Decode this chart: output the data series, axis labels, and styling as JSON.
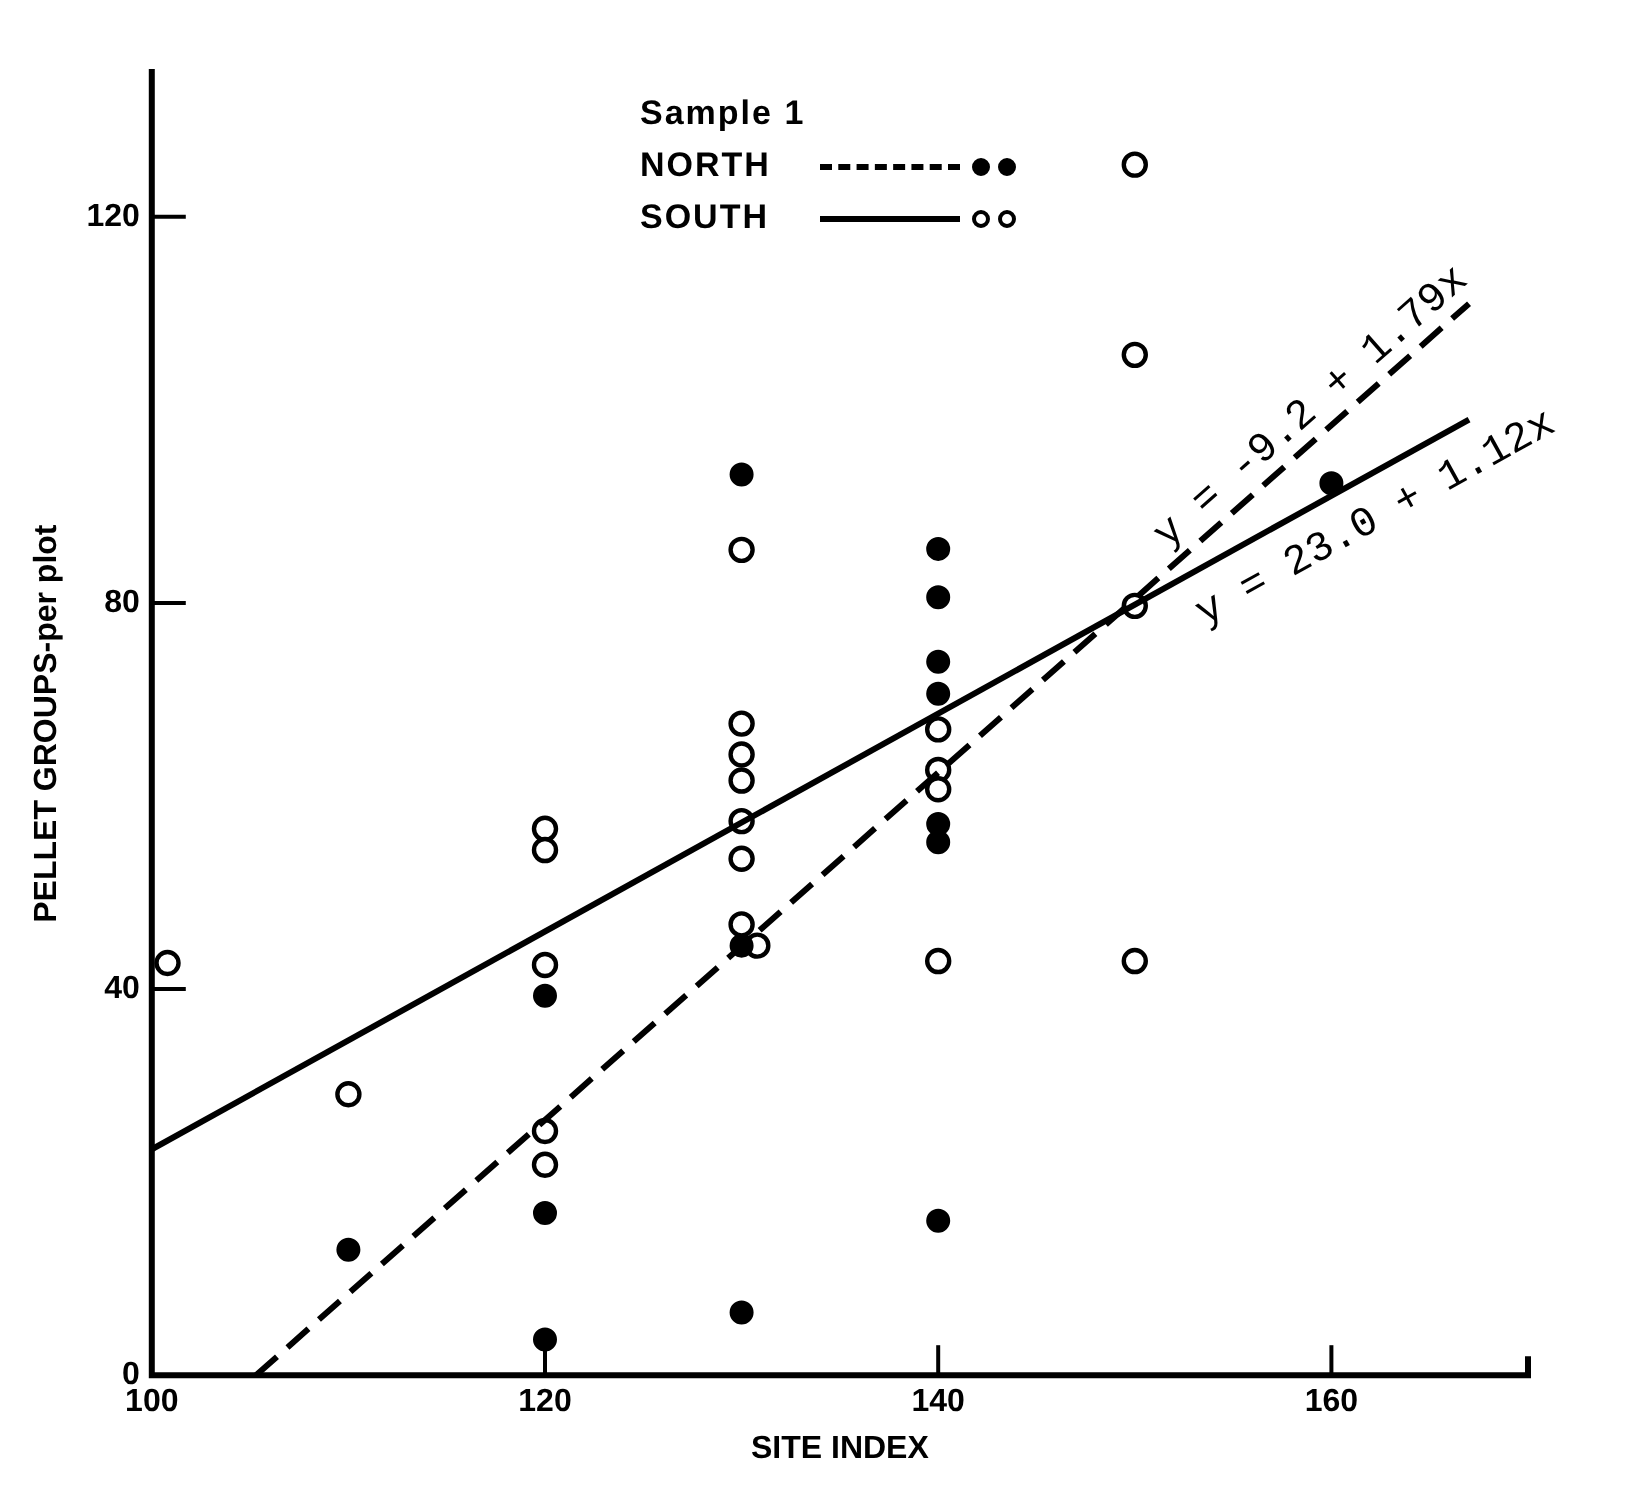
{
  "chart_data": {
    "type": "scatter",
    "xlabel": "SITE INDEX",
    "ylabel": "PELLET GROUPS-per plot",
    "legend_title": "Sample 1",
    "legend": "top",
    "xlim": [
      100,
      170
    ],
    "xticks": [
      100,
      120,
      140,
      160
    ],
    "ylim": [
      0,
      135
    ],
    "yticks": [
      0,
      40,
      80,
      120
    ],
    "grid": false,
    "series": [
      {
        "type": "line",
        "color": "#000000",
        "line_style": "dashed",
        "x": [
          105.3,
          167
        ],
        "values": [
          0,
          111
        ]
      },
      {
        "type": "line",
        "color": "#000000",
        "line_style": "solid",
        "x": [
          100,
          167
        ],
        "values": [
          23.4,
          99
        ]
      },
      {
        "name": "NORTH",
        "color": "#000000",
        "marker": "circle",
        "x": [
          110,
          120,
          120,
          120,
          130,
          130,
          130,
          140,
          140,
          140,
          140,
          140,
          140,
          140,
          160
        ],
        "values": [
          13,
          39.3,
          16.8,
          3.7,
          93.3,
          44.5,
          6.5,
          85.6,
          80.6,
          73.9,
          70.6,
          57.1,
          55.2,
          16,
          92.4
        ]
      },
      {
        "name": "SOUTH",
        "color": "#000000",
        "marker": "circle-open",
        "x": [
          100.8,
          110,
          120,
          120,
          120,
          120,
          120,
          130,
          130,
          130,
          130,
          130,
          130,
          130,
          130.8,
          140,
          140,
          140,
          140,
          150,
          150,
          150,
          150
        ],
        "values": [
          42.7,
          29.1,
          56.6,
          54.4,
          42.5,
          25.3,
          21.8,
          85.5,
          67.5,
          64.3,
          61.6,
          57.4,
          53.5,
          46.7,
          44.5,
          66.9,
          62.7,
          60.7,
          42.9,
          125.4,
          105.7,
          79.7,
          42.9
        ]
      }
    ],
    "annotations": [
      "y = -9.2 + 1.79x",
      "y = 23.0 + 1.12x"
    ]
  }
}
